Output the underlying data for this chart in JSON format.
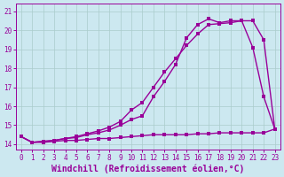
{
  "xlabel": "Windchill (Refroidissement éolien,°C)",
  "bg_color": "#cce8f0",
  "line_color": "#990099",
  "grid_color": "#aacccc",
  "xlim": [
    -0.5,
    23.5
  ],
  "ylim": [
    13.7,
    21.4
  ],
  "xticks": [
    0,
    1,
    2,
    3,
    4,
    5,
    6,
    7,
    8,
    9,
    10,
    11,
    12,
    13,
    14,
    15,
    16,
    17,
    18,
    19,
    20,
    21,
    22,
    23
  ],
  "yticks": [
    14,
    15,
    16,
    17,
    18,
    19,
    20,
    21
  ],
  "line1_x": [
    0,
    1,
    2,
    3,
    4,
    5,
    6,
    7,
    8,
    9,
    10,
    11,
    12,
    13,
    14,
    15,
    16,
    17,
    18,
    19,
    20,
    21,
    22,
    23
  ],
  "line1_y": [
    14.4,
    14.1,
    14.1,
    14.15,
    14.2,
    14.2,
    14.25,
    14.3,
    14.3,
    14.35,
    14.4,
    14.45,
    14.5,
    14.5,
    14.5,
    14.5,
    14.55,
    14.55,
    14.6,
    14.6,
    14.6,
    14.6,
    14.6,
    14.8
  ],
  "line2_x": [
    0,
    1,
    2,
    3,
    4,
    5,
    6,
    7,
    8,
    9,
    10,
    11,
    12,
    13,
    14,
    15,
    16,
    17,
    18,
    19,
    20,
    21,
    22,
    23
  ],
  "line2_y": [
    14.4,
    14.1,
    14.15,
    14.2,
    14.3,
    14.35,
    14.5,
    14.6,
    14.75,
    15.0,
    15.3,
    15.5,
    16.5,
    17.3,
    18.2,
    19.6,
    20.3,
    20.6,
    20.4,
    20.5,
    20.5,
    19.1,
    16.5,
    14.8
  ],
  "line3_x": [
    0,
    1,
    2,
    3,
    4,
    5,
    6,
    7,
    8,
    9,
    10,
    11,
    12,
    13,
    14,
    15,
    16,
    17,
    18,
    19,
    20,
    21,
    22,
    23
  ],
  "line3_y": [
    14.4,
    14.1,
    14.15,
    14.2,
    14.3,
    14.4,
    14.55,
    14.7,
    14.9,
    15.2,
    15.8,
    16.2,
    17.0,
    17.8,
    18.5,
    19.2,
    19.8,
    20.3,
    20.35,
    20.4,
    20.5,
    20.5,
    19.5,
    14.8
  ],
  "marker_size": 2.5,
  "line_width": 1.0,
  "tick_fontsize": 5.5,
  "xlabel_fontsize": 7.0
}
